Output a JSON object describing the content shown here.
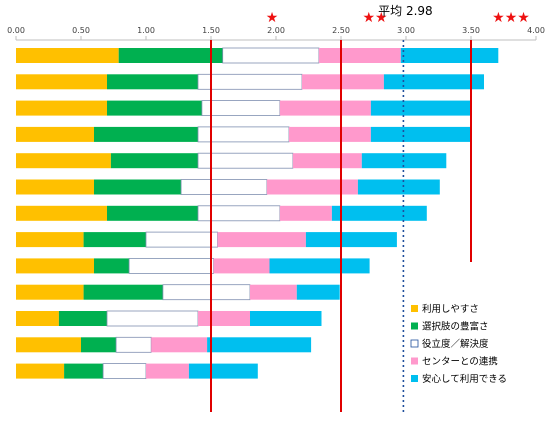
{
  "chart_data": {
    "type": "bar",
    "stacked": true,
    "orientation": "horizontal",
    "title": "",
    "xlabel": "",
    "ylabel": "",
    "xlim": [
      0,
      4
    ],
    "xticks": [
      "0.00",
      "0.50",
      "1.00",
      "1.50",
      "2.00",
      "2.50",
      "3.00",
      "3.50",
      "4.00"
    ],
    "grid": false,
    "legend_position": "bottom-right",
    "series": [
      {
        "name": "利用しやすさ",
        "color": "#ffc000",
        "values": [
          0.79,
          0.7,
          0.7,
          0.6,
          0.73,
          0.6,
          0.7,
          0.52,
          0.6,
          0.52,
          0.33,
          0.5,
          0.37
        ]
      },
      {
        "name": "選択肢の豊富さ",
        "color": "#00b050",
        "values": [
          0.8,
          0.7,
          0.73,
          0.8,
          0.67,
          0.67,
          0.7,
          0.48,
          0.27,
          0.61,
          0.37,
          0.27,
          0.3
        ]
      },
      {
        "name": "役立度／解決度",
        "color": "#ffffff",
        "values": [
          0.74,
          0.8,
          0.6,
          0.7,
          0.73,
          0.66,
          0.63,
          0.55,
          0.65,
          0.67,
          0.7,
          0.27,
          0.33
        ]
      },
      {
        "name": "センターとの連携",
        "color": "#ff99cc",
        "values": [
          0.63,
          0.63,
          0.7,
          0.63,
          0.53,
          0.7,
          0.4,
          0.68,
          0.43,
          0.36,
          0.4,
          0.43,
          0.33
        ]
      },
      {
        "name": "安心して利用できる",
        "color": "#00bfef",
        "values": [
          0.75,
          0.77,
          0.77,
          0.77,
          0.65,
          0.63,
          0.73,
          0.7,
          0.77,
          0.33,
          0.55,
          0.8,
          0.53
        ]
      }
    ],
    "reference_lines": [
      {
        "x": 1.5,
        "color": "#e00000",
        "style": "solid",
        "marker": "★"
      },
      {
        "x": 2.5,
        "color": "#e00000",
        "style": "solid",
        "marker": "★★"
      },
      {
        "x": 2.98,
        "color": "#1f4e9c",
        "style": "dotted",
        "label": "平均 2.98"
      },
      {
        "x": 3.5,
        "color": "#e00000",
        "style": "solid",
        "marker": "★★★"
      }
    ]
  }
}
